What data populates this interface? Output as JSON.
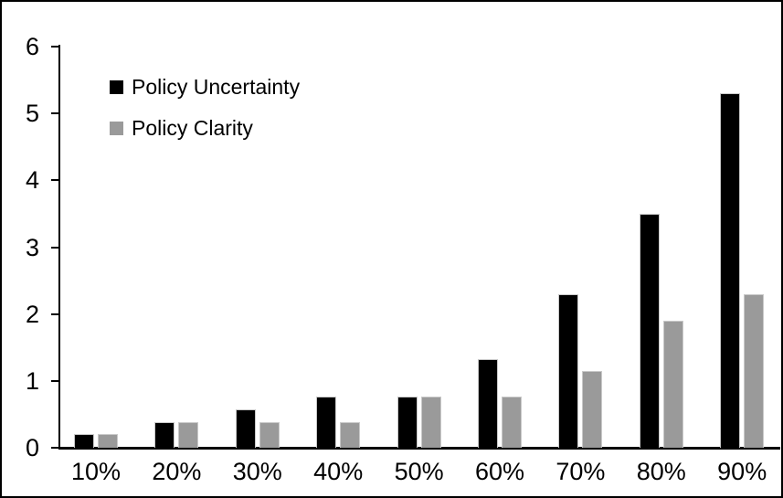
{
  "chart_data": {
    "type": "bar",
    "title": "",
    "xlabel": "",
    "ylabel": "",
    "categories": [
      "10%",
      "20%",
      "30%",
      "40%",
      "50%",
      "60%",
      "70%",
      "80%",
      "90%"
    ],
    "series": [
      {
        "name": "Policy Uncertainty",
        "color": "#000000",
        "values": [
          0.2,
          0.38,
          0.57,
          0.77,
          0.77,
          1.33,
          2.3,
          3.5,
          5.3
        ]
      },
      {
        "name": "Policy Clarity",
        "color": "#9A9A9A",
        "values": [
          0.2,
          0.38,
          0.38,
          0.38,
          0.77,
          0.77,
          1.15,
          1.9,
          2.3
        ]
      }
    ],
    "ylim": [
      0,
      6
    ],
    "yticks": [
      0,
      1,
      2,
      3,
      4,
      5,
      6
    ],
    "grid": false,
    "legend_position": "upper-left-inside",
    "frame_border_color": "#000000",
    "background_color": "#ffffff"
  }
}
